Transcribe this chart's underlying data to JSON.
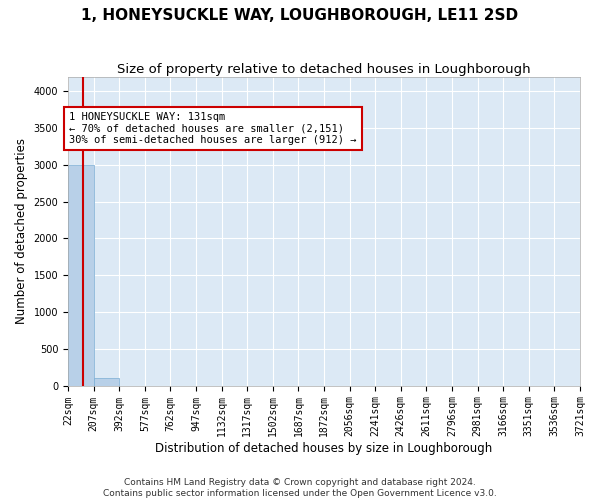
{
  "title": "1, HONEYSUCKLE WAY, LOUGHBOROUGH, LE11 2SD",
  "subtitle": "Size of property relative to detached houses in Loughborough",
  "xlabel": "Distribution of detached houses by size in Loughborough",
  "ylabel": "Number of detached properties",
  "footer_line1": "Contains HM Land Registry data © Crown copyright and database right 2024.",
  "footer_line2": "Contains public sector information licensed under the Open Government Licence v3.0.",
  "bin_edges": [
    22,
    207,
    392,
    577,
    762,
    947,
    1132,
    1317,
    1502,
    1687,
    1872,
    2056,
    2241,
    2426,
    2611,
    2796,
    2981,
    3166,
    3351,
    3536,
    3721
  ],
  "bar_heights": [
    3000,
    110,
    0,
    0,
    0,
    0,
    0,
    0,
    0,
    0,
    0,
    0,
    0,
    0,
    0,
    0,
    0,
    0,
    0,
    0
  ],
  "bar_color": "#b8d0e8",
  "bar_edge_color": "#7aadd4",
  "property_line_x": 131,
  "property_line_color": "#cc0000",
  "annotation_line1": "1 HONEYSUCKLE WAY: 131sqm",
  "annotation_line2": "← 70% of detached houses are smaller (2,151)",
  "annotation_line3": "30% of semi-detached houses are larger (912) →",
  "annotation_box_color": "#cc0000",
  "ylim": [
    0,
    4200
  ],
  "yticks": [
    0,
    500,
    1000,
    1500,
    2000,
    2500,
    3000,
    3500,
    4000
  ],
  "bg_color": "#dce9f5",
  "grid_color": "#ffffff",
  "fig_bg_color": "#ffffff",
  "title_fontsize": 11,
  "subtitle_fontsize": 9.5,
  "axis_label_fontsize": 8.5,
  "tick_fontsize": 7,
  "annotation_fontsize": 7.5,
  "footer_fontsize": 6.5
}
